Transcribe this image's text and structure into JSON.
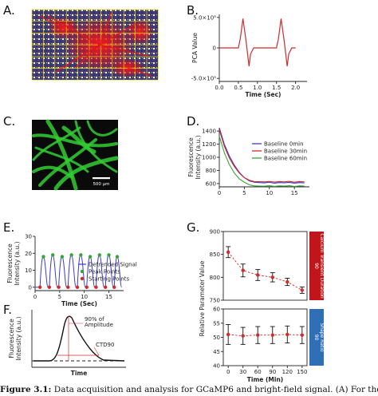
{
  "caption": {
    "figure_label": "Figure 3.1:",
    "text": "Data acquisition and analysis for GCaMP6 and bright-field signal. (A) For the brigh"
  },
  "panels": {
    "A": {
      "letter": "A."
    },
    "B": {
      "letter": "B."
    },
    "C": {
      "letter": "C.",
      "scalebar_label": "500 μm"
    },
    "D": {
      "letter": "D."
    },
    "E": {
      "letter": "E."
    },
    "F": {
      "letter": "F."
    },
    "G": {
      "letter": "G."
    }
  },
  "colors": {
    "red": "#d22b2b",
    "blue": "#3b3bd0",
    "green": "#35a535",
    "dark_red_box": "#c0161b",
    "blue_box": "#2f6fb5",
    "micro_green": "#33cc33"
  },
  "chart_data": [
    {
      "panel": "B",
      "type": "line",
      "xlabel": "Time (Sec)",
      "ylabel": "PCA Value",
      "x_ticks": [
        "0.0",
        "0.5",
        "1.0",
        "1.5",
        "2.0"
      ],
      "y_ticks": [
        "5.0×10⁵",
        "0",
        "-5.0×10⁵"
      ],
      "xlim": [
        0,
        2.3
      ],
      "ylim": [
        -550000,
        550000
      ],
      "series": [
        {
          "color": "#d22b2b",
          "x": [
            0,
            0.5,
            0.55,
            0.62,
            0.7,
            0.78,
            0.82,
            0.9,
            1.0,
            1.5,
            1.55,
            1.62,
            1.7,
            1.78,
            1.82,
            1.9,
            2.0
          ],
          "y": [
            0,
            0,
            150000,
            480000,
            120000,
            -300000,
            -100000,
            0,
            0,
            0,
            150000,
            480000,
            120000,
            -300000,
            -100000,
            0,
            0
          ]
        }
      ]
    },
    {
      "panel": "D",
      "type": "line",
      "ylabel": "Fluorescence Intensity (a.u.)",
      "x_ticks": [
        "0",
        "5",
        "10",
        "15"
      ],
      "y_ticks": [
        "600",
        "800",
        "1000",
        "1200",
        "1400"
      ],
      "xlim": [
        0,
        18
      ],
      "ylim": [
        550,
        1450
      ],
      "series": [
        {
          "name": "Baseline 0min",
          "color": "#3b3bd0",
          "x": [
            0,
            1,
            2,
            3,
            4,
            5,
            6,
            7,
            8,
            9,
            10,
            11,
            12,
            13,
            14,
            15,
            16,
            17
          ],
          "y": [
            1480,
            1200,
            1020,
            880,
            770,
            690,
            640,
            620,
            615,
            610,
            620,
            605,
            615,
            612,
            618,
            606,
            615,
            610
          ]
        },
        {
          "name": "Baseline 30min",
          "color": "#d22b2b",
          "x": [
            0,
            1,
            2,
            3,
            4,
            5,
            6,
            7,
            8,
            9,
            10,
            11,
            12,
            13,
            14,
            15,
            16,
            17
          ],
          "y": [
            1420,
            1170,
            990,
            860,
            760,
            690,
            650,
            630,
            628,
            625,
            632,
            622,
            630,
            626,
            633,
            621,
            630,
            626
          ]
        },
        {
          "name": "Baseline 60min",
          "color": "#35a535",
          "x": [
            0,
            1,
            2,
            3,
            4,
            5,
            6,
            7,
            8,
            9,
            10,
            11,
            12,
            13,
            14,
            15,
            16,
            17
          ],
          "y": [
            1320,
            1070,
            890,
            760,
            670,
            620,
            580,
            565,
            562,
            560,
            567,
            557,
            565,
            561,
            567,
            556,
            565,
            561
          ]
        }
      ]
    },
    {
      "panel": "E",
      "type": "line",
      "xlabel": "Time (Sec)",
      "ylabel": "Fluorescence Intensity (a.u.)",
      "x_ticks": [
        "0",
        "5",
        "10",
        "15"
      ],
      "y_ticks": [
        "0",
        "10",
        "20",
        "30"
      ],
      "xlim": [
        0,
        18
      ],
      "ylim": [
        -2,
        30
      ],
      "legend_position": "bottom-right",
      "series": [
        {
          "name": "Detrended Signal",
          "color": "#3b3bd0"
        },
        {
          "name": "Peak Points",
          "color": "#35a535",
          "x": [
            1.7,
            3.6,
            5.5,
            7.4,
            9.3,
            11.2,
            13.1,
            15.0,
            16.7
          ],
          "y": [
            18,
            19,
            18,
            19,
            19,
            18,
            19,
            19,
            18
          ]
        },
        {
          "name": "Starting Points",
          "color": "#d22b2b",
          "x": [
            1.0,
            2.9,
            4.8,
            6.7,
            8.6,
            10.5,
            12.4,
            14.3,
            16.1
          ],
          "y": [
            0,
            0,
            0,
            0,
            0,
            0,
            0,
            0,
            0
          ]
        }
      ]
    },
    {
      "panel": "F",
      "type": "line",
      "xlabel": "Time",
      "ylabel": "Fluorescence Intensity (a.u.)",
      "annotations": [
        "90% of Amplitude",
        "CTD90"
      ]
    },
    {
      "panel": "G",
      "type": "line",
      "xlabel": "Time (Min)",
      "ylabel": "Relative Parameter Value",
      "x": [
        0,
        30,
        60,
        90,
        120,
        150
      ],
      "x_ticks": [
        "0",
        "30",
        "60",
        "90",
        "120",
        "150"
      ],
      "subplots": [
        {
          "label": "Calcium Transient Duration 90",
          "y_ticks": [
            "750",
            "800",
            "850",
            "900"
          ],
          "ylim": [
            750,
            900
          ],
          "values": [
            855,
            815,
            805,
            800,
            790,
            772
          ],
          "errors": [
            12,
            14,
            12,
            10,
            8,
            7
          ],
          "color": "#d22b2b"
        },
        {
          "label": "Shape Ratio 90",
          "y_ticks": [
            "40",
            "45",
            "50",
            "55",
            "60"
          ],
          "ylim": [
            40,
            60
          ],
          "values": [
            51,
            50.5,
            50.8,
            50.8,
            51,
            50.8
          ],
          "errors": [
            3.5,
            3,
            3,
            3,
            3,
            3
          ],
          "color": "#d22b2b"
        }
      ]
    }
  ]
}
